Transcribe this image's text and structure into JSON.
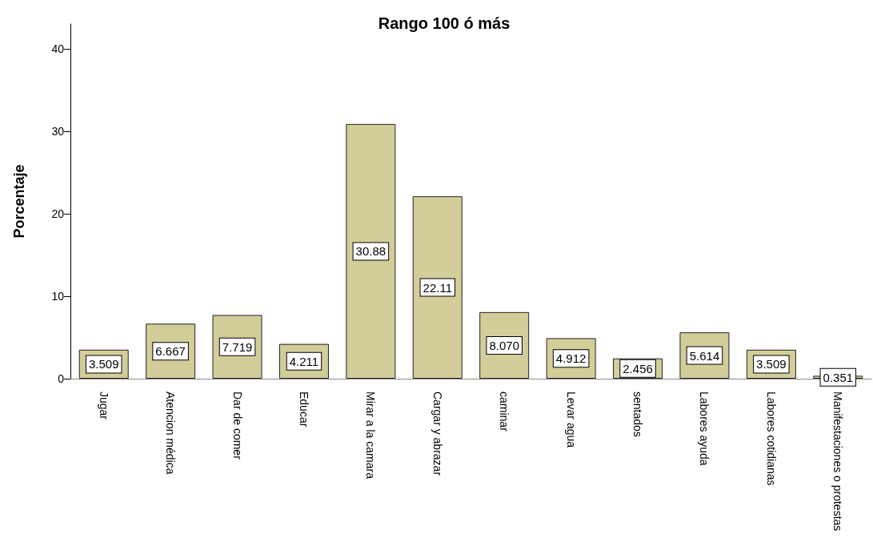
{
  "chart_data": {
    "type": "bar",
    "title": "Rango 100 ó más",
    "ylabel": "Porcentaje",
    "categories": [
      "Jugar",
      "Atencion médica",
      "Dar de comer",
      "Educar",
      "Mirar a la camara",
      "Cargar y abrazar",
      "caminar",
      "Levar agua",
      "sentados",
      "Labores ayuda",
      "Labores cotidianas",
      "Manifestaciones o protestas"
    ],
    "values": [
      3.509,
      6.667,
      7.719,
      4.211,
      30.88,
      22.11,
      8.07,
      4.912,
      2.456,
      5.614,
      3.509,
      0.351
    ],
    "value_labels": [
      "3.509",
      "6.667",
      "7.719",
      "4.211",
      "30.88",
      "22.11",
      "8.070",
      "4.912",
      "2.456",
      "5.614",
      "3.509",
      "0.351"
    ],
    "color": "#d3cd9a",
    "ylim": [
      0,
      43
    ],
    "yticks": [
      0,
      10,
      20,
      30,
      40
    ],
    "grid": false
  }
}
